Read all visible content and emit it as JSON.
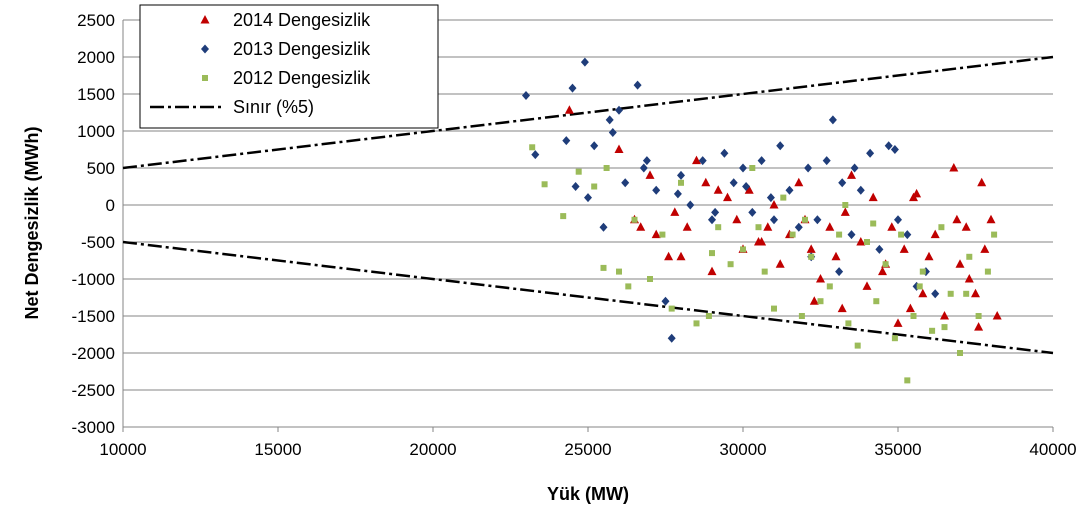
{
  "chart_data": {
    "type": "scatter",
    "xlabel": "Yük (MW)",
    "ylabel": "Net Dengesizlik (MWh)",
    "xlim": [
      10000,
      40000
    ],
    "ylim": [
      -3000,
      2500
    ],
    "xticks": [
      "10000",
      "15000",
      "20000",
      "25000",
      "30000",
      "35000",
      "40000"
    ],
    "yticks": [
      "2500",
      "2000",
      "1500",
      "1000",
      "500",
      "0",
      "-500",
      "-1000",
      "-1500",
      "-2000",
      "-2500",
      "-3000"
    ],
    "grid": "horizontal",
    "legend_position": "top-left",
    "series": [
      {
        "name": "2014 Dengesizlik",
        "color": "#C00000",
        "marker": "triangle",
        "points": [
          [
            24400,
            1280
          ],
          [
            26000,
            750
          ],
          [
            26500,
            -200
          ],
          [
            27000,
            400
          ],
          [
            27200,
            -400
          ],
          [
            27800,
            -100
          ],
          [
            28000,
            -700
          ],
          [
            28500,
            600
          ],
          [
            28800,
            300
          ],
          [
            29000,
            -900
          ],
          [
            29500,
            100
          ],
          [
            29800,
            -200
          ],
          [
            30000,
            -600
          ],
          [
            30200,
            200
          ],
          [
            30500,
            -500
          ],
          [
            30800,
            -300
          ],
          [
            31000,
            0
          ],
          [
            31200,
            -800
          ],
          [
            31500,
            -400
          ],
          [
            31800,
            300
          ],
          [
            32000,
            -200
          ],
          [
            32200,
            -600
          ],
          [
            32500,
            -1000
          ],
          [
            32800,
            -300
          ],
          [
            33000,
            -700
          ],
          [
            33200,
            -1400
          ],
          [
            33500,
            400
          ],
          [
            33800,
            -500
          ],
          [
            34000,
            -1100
          ],
          [
            34200,
            100
          ],
          [
            34500,
            -900
          ],
          [
            34800,
            -300
          ],
          [
            35000,
            -1600
          ],
          [
            35200,
            -600
          ],
          [
            35500,
            100
          ],
          [
            35800,
            -1200
          ],
          [
            36000,
            -700
          ],
          [
            36200,
            -400
          ],
          [
            36500,
            -1500
          ],
          [
            36800,
            500
          ],
          [
            37000,
            -800
          ],
          [
            37200,
            -300
          ],
          [
            37500,
            -1200
          ],
          [
            37700,
            300
          ],
          [
            37800,
            -600
          ],
          [
            38000,
            -200
          ],
          [
            38200,
            -1500
          ],
          [
            37600,
            -1650
          ],
          [
            37300,
            -1000
          ],
          [
            36900,
            -200
          ],
          [
            35600,
            150
          ],
          [
            35400,
            -1400
          ],
          [
            34600,
            -800
          ],
          [
            33300,
            -100
          ],
          [
            32300,
            -1300
          ],
          [
            30600,
            -500
          ],
          [
            29200,
            200
          ],
          [
            28200,
            -300
          ],
          [
            27600,
            -700
          ],
          [
            26700,
            -300
          ]
        ]
      },
      {
        "name": "2013 Dengesizlik",
        "color": "#1F3D7A",
        "marker": "diamond",
        "points": [
          [
            23000,
            1480
          ],
          [
            24500,
            1580
          ],
          [
            24900,
            1930
          ],
          [
            26600,
            1620
          ],
          [
            25700,
            1150
          ],
          [
            25800,
            980
          ],
          [
            25200,
            800
          ],
          [
            26000,
            1280
          ],
          [
            24300,
            870
          ],
          [
            23300,
            680
          ],
          [
            24600,
            250
          ],
          [
            25000,
            100
          ],
          [
            25500,
            -300
          ],
          [
            26200,
            300
          ],
          [
            26800,
            500
          ],
          [
            27200,
            200
          ],
          [
            27500,
            -1300
          ],
          [
            27700,
            -1800
          ],
          [
            28000,
            400
          ],
          [
            28300,
            0
          ],
          [
            28700,
            600
          ],
          [
            29000,
            -200
          ],
          [
            29400,
            700
          ],
          [
            29700,
            300
          ],
          [
            30000,
            500
          ],
          [
            30300,
            -100
          ],
          [
            30600,
            600
          ],
          [
            30900,
            100
          ],
          [
            31200,
            800
          ],
          [
            31500,
            200
          ],
          [
            31800,
            -300
          ],
          [
            32100,
            500
          ],
          [
            32400,
            -200
          ],
          [
            32700,
            600
          ],
          [
            32900,
            1150
          ],
          [
            33200,
            300
          ],
          [
            33500,
            -400
          ],
          [
            33800,
            200
          ],
          [
            34100,
            700
          ],
          [
            34400,
            -600
          ],
          [
            34700,
            800
          ],
          [
            35000,
            -200
          ],
          [
            35300,
            -400
          ],
          [
            35600,
            -1100
          ],
          [
            35900,
            -900
          ],
          [
            36200,
            -1200
          ],
          [
            34900,
            750
          ],
          [
            33600,
            500
          ],
          [
            32200,
            -700
          ],
          [
            31000,
            -200
          ],
          [
            30100,
            250
          ],
          [
            29100,
            -100
          ],
          [
            27900,
            150
          ],
          [
            26900,
            600
          ],
          [
            33100,
            -900
          ]
        ]
      },
      {
        "name": "2012 Dengesizlik",
        "color": "#9BBB59",
        "marker": "square",
        "points": [
          [
            23200,
            780
          ],
          [
            23600,
            280
          ],
          [
            24200,
            -150
          ],
          [
            24700,
            450
          ],
          [
            25200,
            250
          ],
          [
            25600,
            500
          ],
          [
            25500,
            -850
          ],
          [
            26000,
            -900
          ],
          [
            26500,
            -200
          ],
          [
            27000,
            -1000
          ],
          [
            27400,
            -400
          ],
          [
            27700,
            -1400
          ],
          [
            28000,
            300
          ],
          [
            28500,
            -1600
          ],
          [
            28900,
            -1500
          ],
          [
            29200,
            -300
          ],
          [
            29600,
            -800
          ],
          [
            30000,
            -600
          ],
          [
            30300,
            500
          ],
          [
            30700,
            -900
          ],
          [
            31000,
            -1400
          ],
          [
            31300,
            100
          ],
          [
            31600,
            -400
          ],
          [
            31900,
            -1500
          ],
          [
            32200,
            -700
          ],
          [
            32500,
            -1300
          ],
          [
            32800,
            -1100
          ],
          [
            33100,
            -400
          ],
          [
            33400,
            -1600
          ],
          [
            33700,
            -1900
          ],
          [
            34000,
            -500
          ],
          [
            34300,
            -1300
          ],
          [
            34600,
            -800
          ],
          [
            34900,
            -1800
          ],
          [
            35100,
            -400
          ],
          [
            35300,
            -2370
          ],
          [
            35500,
            -1500
          ],
          [
            35800,
            -900
          ],
          [
            36100,
            -1700
          ],
          [
            36400,
            -300
          ],
          [
            36700,
            -1200
          ],
          [
            37000,
            -2000
          ],
          [
            37300,
            -700
          ],
          [
            37600,
            -1500
          ],
          [
            37900,
            -900
          ],
          [
            38100,
            -400
          ],
          [
            36500,
            -1650
          ],
          [
            35700,
            -1100
          ],
          [
            34200,
            -250
          ],
          [
            33300,
            0
          ],
          [
            32000,
            -200
          ],
          [
            30500,
            -300
          ],
          [
            29000,
            -650
          ],
          [
            26300,
            -1100
          ],
          [
            37200,
            -1200
          ]
        ]
      },
      {
        "name": "Sınır (%5)",
        "color": "#000000",
        "line_style": "dash-dot",
        "lines": [
          [
            [
              10000,
              500
            ],
            [
              40000,
              2000
            ]
          ],
          [
            [
              10000,
              -500
            ],
            [
              40000,
              -2000
            ]
          ]
        ]
      }
    ]
  }
}
